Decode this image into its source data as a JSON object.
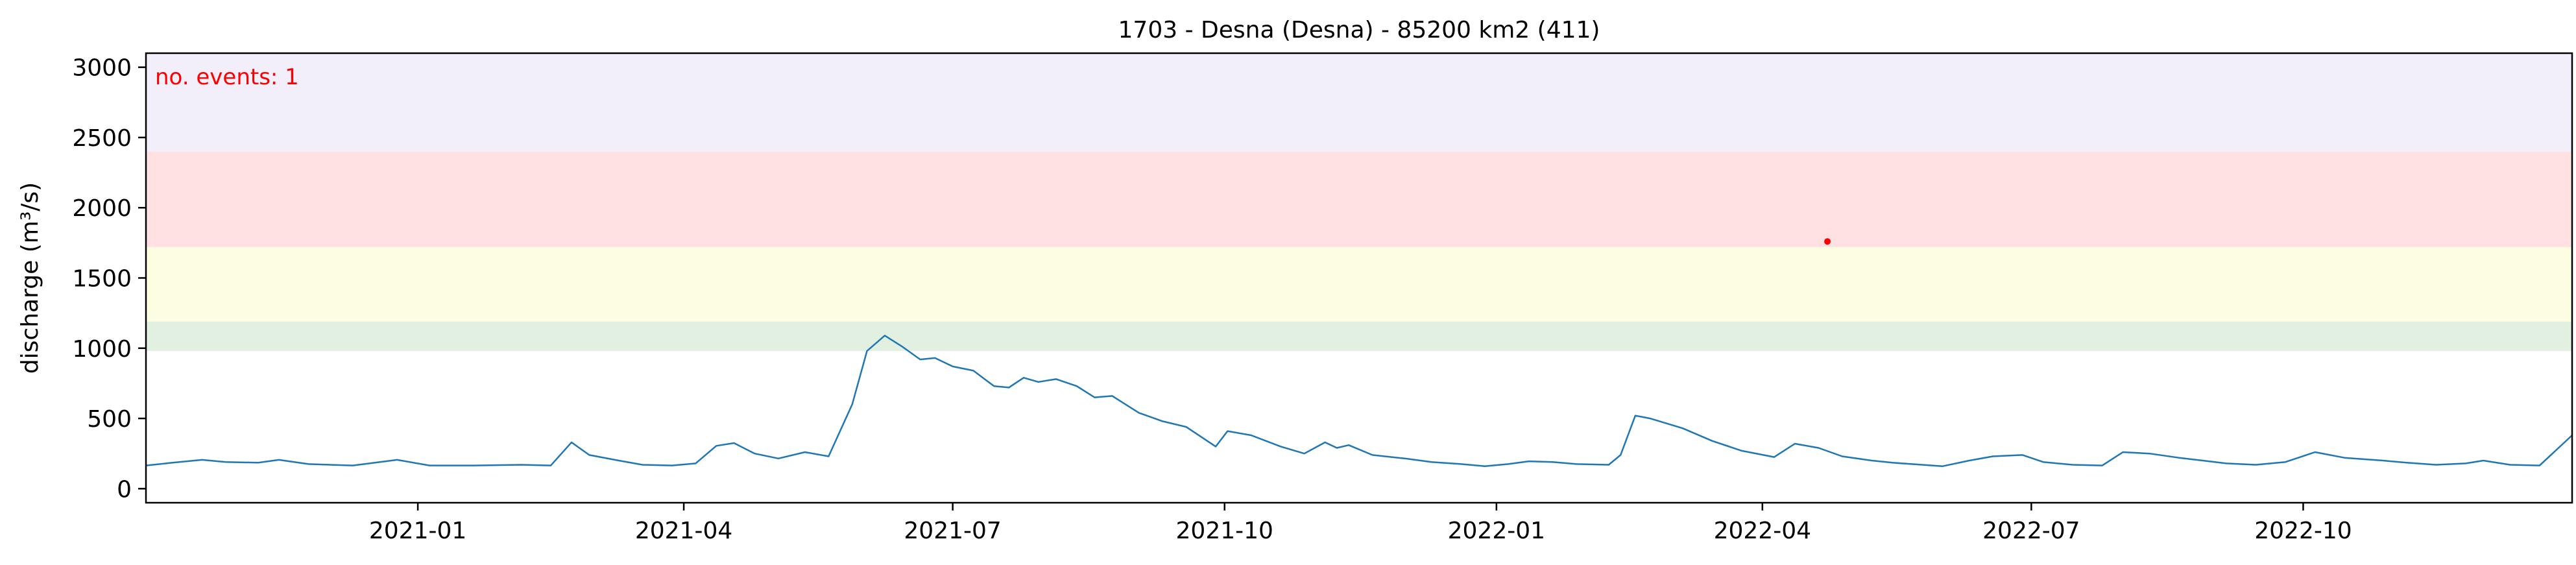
{
  "chart_data": {
    "type": "line",
    "title": "1703 - Desna (Desna) - 85200 km2 (411)",
    "xlabel": "",
    "ylabel": "discharge (m³/s)",
    "ylim": [
      -100,
      3100
    ],
    "xlim": [
      "2020-10-01",
      "2022-12-31"
    ],
    "grid": false,
    "annotation": "no. events: 1",
    "y_ticks": [
      0,
      500,
      1000,
      1500,
      2000,
      2500,
      3000
    ],
    "x_ticks": [
      {
        "date": "2021-01-01",
        "label": "2021-01"
      },
      {
        "date": "2021-04-01",
        "label": "2021-04"
      },
      {
        "date": "2021-07-01",
        "label": "2021-07"
      },
      {
        "date": "2021-10-01",
        "label": "2021-10"
      },
      {
        "date": "2022-01-01",
        "label": "2022-01"
      },
      {
        "date": "2022-04-01",
        "label": "2022-04"
      },
      {
        "date": "2022-07-01",
        "label": "2022-07"
      },
      {
        "date": "2022-10-01",
        "label": "2022-10"
      }
    ],
    "threshold_bands": [
      {
        "from": 980,
        "to": 1190,
        "color": "#e2f0e2"
      },
      {
        "from": 1190,
        "to": 1720,
        "color": "#fdfde2"
      },
      {
        "from": 1720,
        "to": 2400,
        "color": "#ffe1e3"
      },
      {
        "from": 2400,
        "to": 3100,
        "color": "#f2eefa"
      }
    ],
    "series": [
      {
        "color": "#1f77b4",
        "points": [
          [
            "2020-10-01",
            165
          ],
          [
            "2020-10-10",
            185
          ],
          [
            "2020-10-20",
            205
          ],
          [
            "2020-10-28",
            190
          ],
          [
            "2020-11-08",
            185
          ],
          [
            "2020-11-15",
            205
          ],
          [
            "2020-11-25",
            175
          ],
          [
            "2020-12-10",
            165
          ],
          [
            "2020-12-25",
            205
          ],
          [
            "2021-01-05",
            165
          ],
          [
            "2021-01-20",
            165
          ],
          [
            "2021-02-05",
            170
          ],
          [
            "2021-02-15",
            165
          ],
          [
            "2021-02-22",
            330
          ],
          [
            "2021-02-28",
            240
          ],
          [
            "2021-03-10",
            200
          ],
          [
            "2021-03-18",
            170
          ],
          [
            "2021-03-28",
            165
          ],
          [
            "2021-04-05",
            180
          ],
          [
            "2021-04-12",
            305
          ],
          [
            "2021-04-18",
            325
          ],
          [
            "2021-04-25",
            250
          ],
          [
            "2021-05-03",
            215
          ],
          [
            "2021-05-12",
            260
          ],
          [
            "2021-05-20",
            230
          ],
          [
            "2021-05-28",
            600
          ],
          [
            "2021-06-02",
            980
          ],
          [
            "2021-06-08",
            1090
          ],
          [
            "2021-06-14",
            1010
          ],
          [
            "2021-06-20",
            920
          ],
          [
            "2021-06-25",
            930
          ],
          [
            "2021-07-01",
            870
          ],
          [
            "2021-07-08",
            840
          ],
          [
            "2021-07-15",
            730
          ],
          [
            "2021-07-20",
            720
          ],
          [
            "2021-07-25",
            790
          ],
          [
            "2021-07-30",
            760
          ],
          [
            "2021-08-05",
            780
          ],
          [
            "2021-08-12",
            730
          ],
          [
            "2021-08-18",
            650
          ],
          [
            "2021-08-24",
            660
          ],
          [
            "2021-09-02",
            540
          ],
          [
            "2021-09-10",
            480
          ],
          [
            "2021-09-18",
            440
          ],
          [
            "2021-09-28",
            300
          ],
          [
            "2021-10-02",
            410
          ],
          [
            "2021-10-10",
            380
          ],
          [
            "2021-10-20",
            300
          ],
          [
            "2021-10-28",
            250
          ],
          [
            "2021-11-04",
            330
          ],
          [
            "2021-11-08",
            290
          ],
          [
            "2021-11-12",
            310
          ],
          [
            "2021-11-20",
            240
          ],
          [
            "2021-12-01",
            215
          ],
          [
            "2021-12-10",
            190
          ],
          [
            "2021-12-20",
            175
          ],
          [
            "2021-12-28",
            160
          ],
          [
            "2022-01-05",
            175
          ],
          [
            "2022-01-12",
            195
          ],
          [
            "2022-01-20",
            190
          ],
          [
            "2022-01-28",
            175
          ],
          [
            "2022-02-08",
            170
          ],
          [
            "2022-02-12",
            240
          ],
          [
            "2022-02-17",
            520
          ],
          [
            "2022-02-22",
            500
          ],
          [
            "2022-03-05",
            430
          ],
          [
            "2022-03-15",
            340
          ],
          [
            "2022-03-25",
            270
          ],
          [
            "2022-04-05",
            225
          ],
          [
            "2022-04-12",
            320
          ],
          [
            "2022-04-20",
            290
          ],
          [
            "2022-04-28",
            230
          ],
          [
            "2022-05-08",
            200
          ],
          [
            "2022-05-15",
            185
          ],
          [
            "2022-05-25",
            170
          ],
          [
            "2022-06-01",
            160
          ],
          [
            "2022-06-10",
            200
          ],
          [
            "2022-06-18",
            230
          ],
          [
            "2022-06-28",
            240
          ],
          [
            "2022-07-05",
            190
          ],
          [
            "2022-07-15",
            170
          ],
          [
            "2022-07-25",
            165
          ],
          [
            "2022-08-01",
            260
          ],
          [
            "2022-08-10",
            250
          ],
          [
            "2022-08-20",
            220
          ],
          [
            "2022-08-28",
            200
          ],
          [
            "2022-09-05",
            180
          ],
          [
            "2022-09-15",
            170
          ],
          [
            "2022-09-25",
            190
          ],
          [
            "2022-10-05",
            260
          ],
          [
            "2022-10-15",
            220
          ],
          [
            "2022-10-28",
            200
          ],
          [
            "2022-11-05",
            185
          ],
          [
            "2022-11-15",
            170
          ],
          [
            "2022-11-25",
            180
          ],
          [
            "2022-12-01",
            200
          ],
          [
            "2022-12-10",
            170
          ],
          [
            "2022-12-20",
            165
          ],
          [
            "2022-12-31",
            380
          ]
        ]
      }
    ],
    "events": [
      {
        "date": "2022-04-23",
        "value": 1760,
        "color": "#ff0000"
      }
    ]
  }
}
